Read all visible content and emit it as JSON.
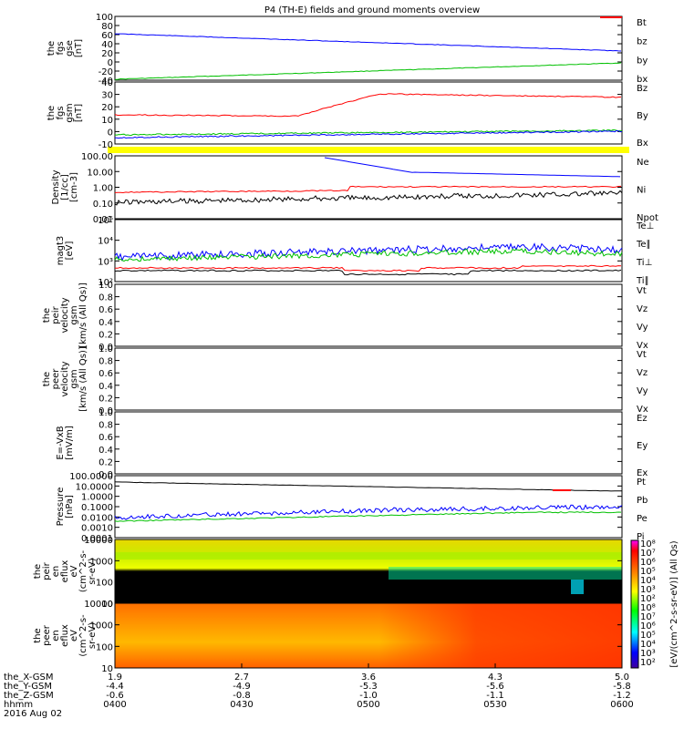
{
  "title": "P4 (TH-E) fields and ground moments overview",
  "panels": [
    {
      "id": "fgs_gse",
      "ylabel": [
        "the",
        "fgs",
        "gse",
        "[nT]"
      ],
      "ticks": [
        "100",
        "80",
        "60",
        "40",
        "20",
        "0",
        "-20",
        "-40"
      ],
      "legend": [
        {
          "text": "Bt",
          "color": "#000000"
        },
        {
          "text": "bz",
          "color": "#ff0000"
        },
        {
          "text": "by",
          "color": "#00c000"
        },
        {
          "text": "bx",
          "color": "#0000ff"
        }
      ]
    },
    {
      "id": "fgs_gsm",
      "ylabel": [
        "the",
        "fgs",
        "gsm",
        "[nT]"
      ],
      "ticks": [
        "40",
        "30",
        "20",
        "10",
        "0",
        "-10"
      ],
      "legend": [
        {
          "text": "Bz",
          "color": "#ff0000"
        },
        {
          "text": "By",
          "color": "#00c000"
        },
        {
          "text": "Bx",
          "color": "#0000ff"
        }
      ]
    },
    {
      "id": "density",
      "ylabel": [
        "Density",
        "[1/cc]",
        "[cm-3]"
      ],
      "ticks": [
        "100.00",
        "10.00",
        "1.00",
        "0.10",
        "0.01"
      ],
      "legend": [
        {
          "text": "Ne",
          "color": "#ff0000"
        },
        {
          "text": "Ni",
          "color": "#000000"
        },
        {
          "text": "Npot",
          "color": "#0000ff"
        }
      ]
    },
    {
      "id": "temp",
      "ylabel": [
        "magt3",
        "[eV]"
      ],
      "ticks": [
        "10⁵",
        "10⁴",
        "10³",
        "10²"
      ],
      "legend": [
        {
          "text": "Te⊥",
          "color": "#ff0000"
        },
        {
          "text": "Te∥",
          "color": "#000000"
        },
        {
          "text": "Ti⊥",
          "color": "#0000ff"
        },
        {
          "text": "Ti∥",
          "color": "#00c000"
        }
      ]
    },
    {
      "id": "peir_vel",
      "ylabel": [
        "the",
        "peir",
        "velocity",
        "gsm",
        "[km/s (All Qs)]"
      ],
      "ticks": [
        "1.0",
        "0.8",
        "0.6",
        "0.4",
        "0.2",
        "0.0"
      ],
      "legend": [
        {
          "text": "Vt",
          "color": "#000000"
        },
        {
          "text": "Vz",
          "color": "#ff0000"
        },
        {
          "text": "Vy",
          "color": "#00c000"
        },
        {
          "text": "Vx",
          "color": "#0000ff"
        }
      ]
    },
    {
      "id": "peer_vel",
      "ylabel": [
        "the",
        "peer",
        "velocity",
        "gsm",
        "[km/s (All Qs)]"
      ],
      "ticks": [
        "1.0",
        "0.8",
        "0.6",
        "0.4",
        "0.2",
        "0.0"
      ],
      "legend": [
        {
          "text": "Vt",
          "color": "#000000"
        },
        {
          "text": "Vz",
          "color": "#ff0000"
        },
        {
          "text": "Vy",
          "color": "#00c000"
        },
        {
          "text": "Vx",
          "color": "#0000ff"
        }
      ]
    },
    {
      "id": "efield",
      "ylabel": [
        "E=-VxB",
        "[mV/m]"
      ],
      "ticks": [
        "1.0",
        "0.8",
        "0.6",
        "0.4",
        "0.2",
        "0.0"
      ],
      "legend": [
        {
          "text": "Ez",
          "color": "#ff0000"
        },
        {
          "text": "Ey",
          "color": "#00c000"
        },
        {
          "text": "Ex",
          "color": "#0000ff"
        }
      ]
    },
    {
      "id": "pressure",
      "ylabel": [
        "Pressure",
        "[nPa]"
      ],
      "ticks": [
        "100.0000",
        "10.0000",
        "1.0000",
        "0.1000",
        "0.0100",
        "0.0010",
        "0.0001"
      ],
      "legend": [
        {
          "text": "Pt",
          "color": "#000000"
        },
        {
          "text": "Pb",
          "color": "#ff0000"
        },
        {
          "text": "Pe",
          "color": "#00c000"
        },
        {
          "text": "Pi",
          "color": "#0000ff"
        }
      ]
    },
    {
      "id": "peir_en",
      "ylabel": [
        "the",
        "peir",
        "en",
        "eflux",
        "eV",
        "(cm^2-s-",
        "sr-eV)"
      ],
      "ticks": [
        "10000",
        "1000",
        "100",
        "10"
      ]
    },
    {
      "id": "peer_en",
      "ylabel": [
        "the",
        "peer",
        "en",
        "eflux",
        "eV",
        "(cm^2-s-",
        "sr-eV)"
      ],
      "ticks": [
        "10000",
        "1000",
        "100",
        "10"
      ]
    }
  ],
  "colorbar": {
    "label": "[eV/(cm^2-s-sr-eV)] (All Qs)",
    "ticks_top": [
      "10⁸",
      "10⁷",
      "10⁶",
      "10⁵",
      "10⁴",
      "10³",
      "10²"
    ],
    "ticks_bottom": [
      "10⁸",
      "10⁷",
      "10⁶",
      "10⁵",
      "10⁴",
      "10³",
      "10²"
    ]
  },
  "xaxis": {
    "rows": [
      {
        "label": "the_X-GSM",
        "values": [
          "1.9",
          "2.7",
          "3.6",
          "4.3",
          "5.0"
        ]
      },
      {
        "label": "the_Y-GSM",
        "values": [
          "-4.4",
          "-4.9",
          "-5.3",
          "-5.6",
          "-5.8"
        ]
      },
      {
        "label": "the_Z-GSM",
        "values": [
          "-0.6",
          "-0.8",
          "-1.0",
          "-1.1",
          "-1.2"
        ]
      },
      {
        "label": "hhmm",
        "values": [
          "0400",
          "0430",
          "0500",
          "0530",
          "0600"
        ]
      }
    ],
    "date": "2016 Aug 02"
  },
  "chart_data": {
    "type": "line",
    "title": "P4 (TH-E) fields and ground moments overview",
    "x": [
      "0400",
      "0430",
      "0500",
      "0530",
      "0600"
    ],
    "series": [
      {
        "name": "bx",
        "panel": "fgs_gse",
        "values": [
          55,
          42,
          32,
          26,
          20
        ]
      },
      {
        "name": "by",
        "panel": "fgs_gse",
        "values": [
          -42,
          -30,
          -18,
          -10,
          -5
        ]
      },
      {
        "name": "Bz",
        "panel": "fgs_gsm",
        "values": [
          14,
          12,
          31,
          28,
          28
        ]
      },
      {
        "name": "By",
        "panel": "fgs_gsm",
        "values": [
          -2,
          -1,
          0,
          0,
          0
        ]
      },
      {
        "name": "Bx",
        "panel": "fgs_gsm",
        "values": [
          -5,
          -3,
          -1,
          0,
          0
        ]
      },
      {
        "name": "Ne",
        "panel": "density",
        "values": [
          0.35,
          0.4,
          1.2,
          0.9,
          0.8
        ]
      },
      {
        "name": "Ni",
        "panel": "density",
        "values": [
          0.12,
          0.16,
          0.22,
          0.25,
          0.3
        ]
      },
      {
        "name": "Npot",
        "panel": "density",
        "values": [
          null,
          null,
          100,
          8,
          5
        ]
      },
      {
        "name": "Ti⊥",
        "panel": "temp",
        "values": [
          2000,
          3000,
          3500,
          3000,
          2500
        ]
      },
      {
        "name": "Ti∥",
        "panel": "temp",
        "values": [
          1500,
          2500,
          3000,
          2800,
          2000
        ]
      },
      {
        "name": "Te⊥",
        "panel": "temp",
        "values": [
          500,
          550,
          400,
          450,
          500
        ]
      },
      {
        "name": "Te∥",
        "panel": "temp",
        "values": [
          400,
          450,
          350,
          400,
          450
        ]
      },
      {
        "name": "Pt",
        "panel": "pressure",
        "values": [
          25,
          14,
          9,
          7,
          5
        ]
      },
      {
        "name": "Pe",
        "panel": "pressure",
        "values": [
          0.01,
          0.02,
          0.05,
          0.08,
          0.06
        ]
      },
      {
        "name": "Pi",
        "panel": "pressure",
        "values": [
          0.015,
          0.04,
          0.12,
          0.2,
          0.2
        ]
      }
    ]
  }
}
